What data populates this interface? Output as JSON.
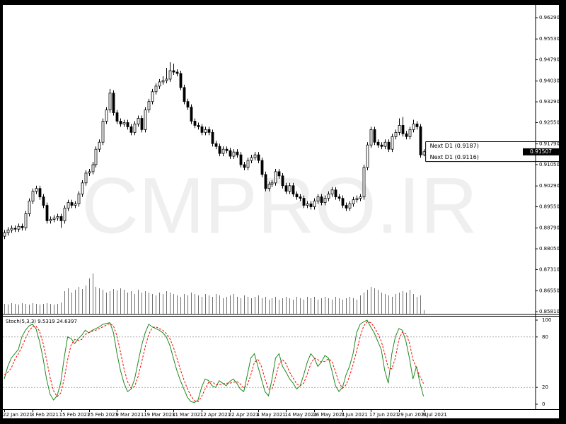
{
  "chart_data": [
    {
      "type": "candlestick",
      "watermark": "CMPRO.IR",
      "categories": [
        "22 Jan 2021",
        null,
        null,
        null,
        null,
        null,
        null,
        null,
        "3 Feb 2021",
        null,
        null,
        null,
        null,
        null,
        null,
        null,
        "15 Feb 2021",
        null,
        null,
        null,
        null,
        null,
        null,
        null,
        "25 Feb 2021",
        null,
        null,
        null,
        null,
        null,
        null,
        null,
        "9 Mar 2021",
        null,
        null,
        null,
        null,
        null,
        null,
        null,
        "19 Mar 2021",
        null,
        null,
        null,
        null,
        null,
        null,
        null,
        "31 Mar 2021",
        null,
        null,
        null,
        null,
        null,
        null,
        null,
        "12 Apr 2021",
        null,
        null,
        null,
        null,
        null,
        null,
        null,
        "22 Apr 2021",
        null,
        null,
        null,
        null,
        null,
        null,
        null,
        "4 May 2021",
        null,
        null,
        null,
        null,
        null,
        null,
        null,
        "14 May 2021",
        null,
        null,
        null,
        null,
        null,
        null,
        null,
        "26 May 2021",
        null,
        null,
        null,
        null,
        null,
        null,
        null,
        "7 Jun 2021",
        null,
        null,
        null,
        null,
        null,
        null,
        null,
        "17 Jun 2021",
        null,
        null,
        null,
        null,
        null,
        null,
        null,
        "29 Jun 2021",
        null,
        null,
        null,
        null,
        null,
        null,
        "9 Jul 2021"
      ],
      "open": [
        0.885,
        0.8862,
        0.8872,
        0.8878,
        0.8875,
        0.8885,
        0.888,
        0.893,
        0.8975,
        0.901,
        0.902,
        0.899,
        0.896,
        0.8905,
        0.891,
        0.8915,
        0.892,
        0.8905,
        0.895,
        0.897,
        0.896,
        0.8965,
        0.9,
        0.904,
        0.9075,
        0.908,
        0.9105,
        0.916,
        0.9185,
        0.926,
        0.93,
        0.936,
        0.929,
        0.926,
        0.925,
        0.9255,
        0.924,
        0.922,
        0.925,
        0.927,
        0.923,
        0.93,
        0.933,
        0.9365,
        0.9385,
        0.94,
        0.9405,
        0.941,
        0.944,
        0.9435,
        0.943,
        0.938,
        0.933,
        0.931,
        0.926,
        0.9245,
        0.924,
        0.922,
        0.923,
        0.922,
        0.918,
        0.917,
        0.9145,
        0.916,
        0.9155,
        0.9135,
        0.915,
        0.914,
        0.9105,
        0.9095,
        0.912,
        0.913,
        0.914,
        0.912,
        0.907,
        0.902,
        0.9035,
        0.904,
        0.908,
        0.9065,
        0.903,
        0.901,
        0.903,
        0.9,
        0.899,
        0.8985,
        0.896,
        0.8965,
        0.8955,
        0.8975,
        0.899,
        0.897,
        0.8985,
        0.9,
        0.9015,
        0.899,
        0.8985,
        0.896,
        0.895,
        0.8965,
        0.898,
        0.8985,
        0.899,
        0.9095,
        0.9175,
        0.923,
        0.9185,
        0.9175,
        0.917,
        0.9185,
        0.916,
        0.9205,
        0.922,
        0.9245,
        0.9215,
        0.9205,
        0.923,
        0.925,
        0.924,
        0.914
      ],
      "high": [
        0.8872,
        0.8882,
        0.8888,
        0.8888,
        0.8895,
        0.8895,
        0.894,
        0.8985,
        0.902,
        0.903,
        0.903,
        0.9,
        0.897,
        0.892,
        0.8925,
        0.893,
        0.893,
        0.896,
        0.898,
        0.898,
        0.8975,
        0.901,
        0.905,
        0.9085,
        0.909,
        0.9115,
        0.917,
        0.9195,
        0.927,
        0.931,
        0.9375,
        0.937,
        0.93,
        0.927,
        0.9265,
        0.9265,
        0.925,
        0.926,
        0.928,
        0.928,
        0.931,
        0.934,
        0.9375,
        0.9395,
        0.941,
        0.942,
        0.945,
        0.947,
        0.9465,
        0.9445,
        0.944,
        0.939,
        0.934,
        0.932,
        0.927,
        0.9255,
        0.925,
        0.924,
        0.924,
        0.923,
        0.919,
        0.918,
        0.917,
        0.917,
        0.9165,
        0.916,
        0.916,
        0.915,
        0.9115,
        0.913,
        0.914,
        0.915,
        0.915,
        0.913,
        0.908,
        0.9045,
        0.905,
        0.909,
        0.909,
        0.9075,
        0.904,
        0.904,
        0.904,
        0.901,
        0.9,
        0.8995,
        0.8975,
        0.8975,
        0.8985,
        0.9,
        0.9,
        0.8995,
        0.901,
        0.9025,
        0.9025,
        0.9,
        0.8995,
        0.897,
        0.8975,
        0.899,
        0.8995,
        0.9,
        0.9105,
        0.9185,
        0.924,
        0.924,
        0.9195,
        0.9185,
        0.9195,
        0.9195,
        0.9215,
        0.923,
        0.927,
        0.9275,
        0.9225,
        0.924,
        0.9265,
        0.926,
        0.925,
        0.916
      ],
      "low": [
        0.884,
        0.8852,
        0.8862,
        0.8865,
        0.8865,
        0.887,
        0.887,
        0.892,
        0.8965,
        0.9,
        0.898,
        0.895,
        0.8895,
        0.8895,
        0.89,
        0.8905,
        0.888,
        0.8895,
        0.894,
        0.895,
        0.895,
        0.8955,
        0.899,
        0.903,
        0.9065,
        0.907,
        0.9095,
        0.915,
        0.9175,
        0.925,
        0.929,
        0.928,
        0.925,
        0.924,
        0.924,
        0.923,
        0.921,
        0.921,
        0.924,
        0.922,
        0.922,
        0.929,
        0.932,
        0.9355,
        0.9375,
        0.939,
        0.9395,
        0.94,
        0.9425,
        0.942,
        0.937,
        0.932,
        0.93,
        0.925,
        0.9235,
        0.923,
        0.921,
        0.921,
        0.921,
        0.917,
        0.916,
        0.9135,
        0.9135,
        0.9145,
        0.9125,
        0.9125,
        0.913,
        0.9095,
        0.9085,
        0.9085,
        0.911,
        0.912,
        0.911,
        0.906,
        0.901,
        0.901,
        0.9025,
        0.903,
        0.9055,
        0.902,
        0.9,
        0.9,
        0.899,
        0.898,
        0.8975,
        0.895,
        0.895,
        0.8945,
        0.8945,
        0.8965,
        0.896,
        0.896,
        0.8975,
        0.899,
        0.898,
        0.8975,
        0.895,
        0.894,
        0.894,
        0.8955,
        0.897,
        0.8975,
        0.898,
        0.9085,
        0.9165,
        0.9175,
        0.9165,
        0.916,
        0.916,
        0.915,
        0.915,
        0.9195,
        0.921,
        0.9205,
        0.9195,
        0.9195,
        0.922,
        0.923,
        0.913,
        0.9135
      ],
      "close": [
        0.8862,
        0.8872,
        0.8878,
        0.8875,
        0.8885,
        0.888,
        0.893,
        0.8975,
        0.901,
        0.902,
        0.899,
        0.896,
        0.8905,
        0.891,
        0.8915,
        0.892,
        0.8905,
        0.895,
        0.897,
        0.896,
        0.8965,
        0.9,
        0.904,
        0.9075,
        0.908,
        0.9105,
        0.916,
        0.9185,
        0.926,
        0.93,
        0.936,
        0.929,
        0.926,
        0.925,
        0.9255,
        0.924,
        0.922,
        0.925,
        0.927,
        0.923,
        0.93,
        0.933,
        0.9365,
        0.9385,
        0.94,
        0.9405,
        0.941,
        0.944,
        0.9435,
        0.943,
        0.938,
        0.933,
        0.931,
        0.926,
        0.9245,
        0.924,
        0.922,
        0.923,
        0.922,
        0.918,
        0.917,
        0.9145,
        0.916,
        0.9155,
        0.9135,
        0.915,
        0.914,
        0.9105,
        0.9095,
        0.912,
        0.913,
        0.914,
        0.912,
        0.907,
        0.902,
        0.9035,
        0.904,
        0.908,
        0.9065,
        0.903,
        0.901,
        0.903,
        0.9,
        0.899,
        0.8985,
        0.896,
        0.8965,
        0.8955,
        0.8975,
        0.899,
        0.897,
        0.8985,
        0.9,
        0.9015,
        0.899,
        0.8985,
        0.896,
        0.895,
        0.8965,
        0.898,
        0.8985,
        0.899,
        0.9095,
        0.9175,
        0.923,
        0.9185,
        0.9175,
        0.917,
        0.9185,
        0.916,
        0.9205,
        0.922,
        0.9245,
        0.9215,
        0.9205,
        0.923,
        0.925,
        0.924,
        0.914,
        0.9151
      ],
      "volume": [
        14,
        13,
        15,
        14,
        13,
        15,
        14,
        13,
        15,
        14,
        13,
        14,
        15,
        14,
        13,
        14,
        16,
        32,
        36,
        30,
        34,
        38,
        35,
        40,
        50,
        57,
        38,
        36,
        34,
        30,
        32,
        35,
        33,
        36,
        34,
        30,
        32,
        28,
        34,
        30,
        32,
        30,
        28,
        26,
        30,
        28,
        32,
        30,
        28,
        26,
        24,
        28,
        26,
        30,
        28,
        26,
        24,
        28,
        26,
        24,
        28,
        26,
        22,
        24,
        26,
        28,
        24,
        22,
        26,
        24,
        22,
        24,
        26,
        22,
        24,
        20,
        22,
        24,
        20,
        22,
        24,
        22,
        20,
        24,
        22,
        20,
        24,
        22,
        24,
        20,
        22,
        24,
        22,
        20,
        24,
        22,
        20,
        22,
        24,
        22,
        20,
        26,
        30,
        34,
        38,
        36,
        34,
        30,
        28,
        26,
        24,
        28,
        30,
        32,
        30,
        34,
        28,
        24,
        26,
        5
      ],
      "up_color": "#ffffff",
      "down_color": "#000000",
      "volume_color": "#707070",
      "ylim": [
        0.8581,
        0.9629
      ],
      "yticks": [
        {
          "value": 0.8581,
          "label": "0.85810"
        },
        {
          "value": 0.8655,
          "label": "0.86550"
        },
        {
          "value": 0.8731,
          "label": "0.87310"
        },
        {
          "value": 0.8805,
          "label": "0.88050"
        },
        {
          "value": 0.8879,
          "label": "0.88790"
        },
        {
          "value": 0.8955,
          "label": "0.89550"
        },
        {
          "value": 0.9029,
          "label": "0.90290"
        },
        {
          "value": 0.9105,
          "label": "0.91050"
        },
        {
          "value": 0.9179,
          "label": "0.91790"
        },
        {
          "value": 0.9255,
          "label": "0.92550"
        },
        {
          "value": 0.9329,
          "label": "0.93290"
        },
        {
          "value": 0.9403,
          "label": "0.94030"
        },
        {
          "value": 0.9479,
          "label": "0.94790"
        },
        {
          "value": 0.9553,
          "label": "0.95530"
        },
        {
          "value": 0.9629,
          "label": "0.96290"
        }
      ],
      "current_price": 0.91507,
      "levels": [
        {
          "value": 0.9187,
          "label": "Next D1 (0.9187)"
        },
        {
          "value": 0.9116,
          "label": "Next D1 (0.9116)"
        }
      ]
    },
    {
      "type": "line",
      "title": "Stoch(5,3,3) 9.5319 24.6397",
      "ylim": [
        0,
        100
      ],
      "yticks": [
        0,
        20,
        80,
        100
      ],
      "levels": [
        20,
        80
      ],
      "series": [
        {
          "color": "#1e8a1e",
          "dash": false,
          "values": [
            30,
            45,
            55,
            60,
            65,
            80,
            88,
            93,
            95,
            90,
            75,
            55,
            30,
            12,
            5,
            10,
            25,
            55,
            80,
            78,
            72,
            78,
            82,
            88,
            85,
            88,
            90,
            92,
            95,
            96,
            97,
            85,
            60,
            40,
            25,
            15,
            18,
            30,
            50,
            70,
            85,
            95,
            92,
            90,
            88,
            85,
            80,
            70,
            55,
            40,
            28,
            18,
            8,
            3,
            2,
            5,
            20,
            30,
            28,
            22,
            20,
            28,
            25,
            22,
            27,
            30,
            25,
            18,
            15,
            35,
            55,
            60,
            45,
            30,
            15,
            10,
            30,
            55,
            60,
            45,
            38,
            30,
            25,
            18,
            22,
            35,
            50,
            60,
            55,
            45,
            50,
            58,
            55,
            40,
            22,
            15,
            20,
            35,
            45,
            60,
            85,
            95,
            98,
            100,
            92,
            85,
            75,
            65,
            40,
            25,
            60,
            80,
            90,
            88,
            75,
            55,
            30,
            45,
            25,
            9.5319
          ]
        },
        {
          "color": "#ff0000",
          "dash": true,
          "values": [
            35,
            38,
            43,
            53,
            60,
            68,
            78,
            87,
            92,
            93,
            87,
            73,
            53,
            32,
            16,
            9,
            13,
            30,
            53,
            71,
            77,
            76,
            77,
            83,
            85,
            87,
            88,
            90,
            92,
            94,
            96,
            93,
            81,
            62,
            42,
            27,
            19,
            21,
            33,
            50,
            68,
            83,
            91,
            92,
            90,
            88,
            84,
            78,
            68,
            55,
            41,
            29,
            18,
            10,
            4,
            3,
            9,
            18,
            26,
            27,
            23,
            23,
            24,
            25,
            25,
            26,
            27,
            24,
            19,
            23,
            35,
            50,
            53,
            45,
            30,
            18,
            18,
            32,
            48,
            53,
            48,
            38,
            31,
            24,
            22,
            25,
            36,
            48,
            55,
            53,
            50,
            51,
            54,
            51,
            39,
            26,
            19,
            23,
            33,
            47,
            63,
            80,
            93,
            98,
            97,
            92,
            84,
            75,
            60,
            43,
            42,
            55,
            77,
            86,
            84,
            73,
            53,
            43,
            33,
            24.6397
          ]
        }
      ]
    }
  ]
}
